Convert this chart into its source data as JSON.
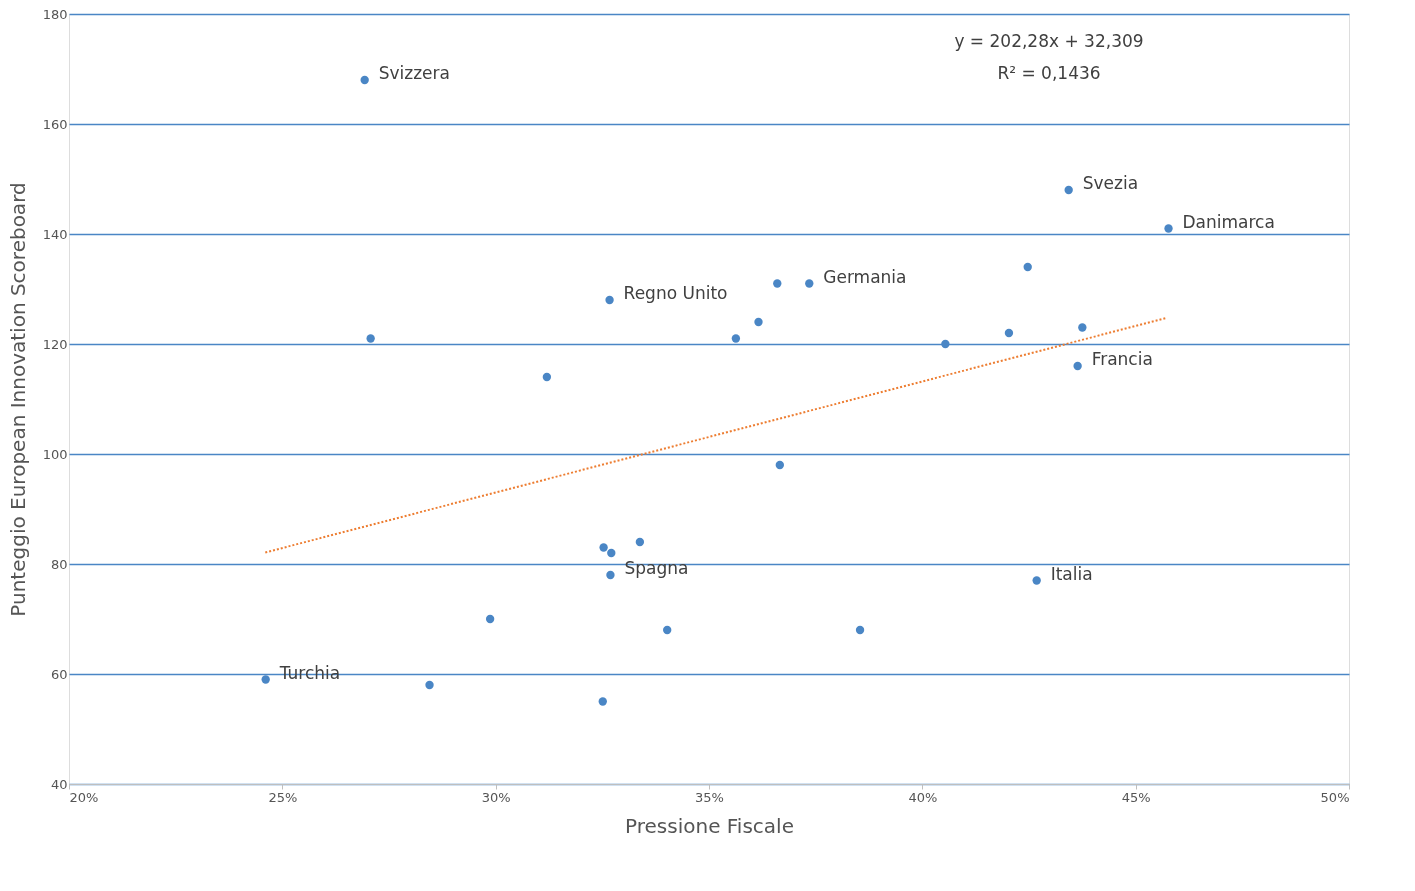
{
  "chart_data": {
    "type": "scatter",
    "xlabel": "Pressione Fiscale",
    "ylabel": "Punteggio European Innovation Scoreboard",
    "xlim": [
      0.2,
      0.5
    ],
    "xticks": [
      {
        "value": 0.2,
        "label": "20%"
      },
      {
        "value": 0.25,
        "label": "25%"
      },
      {
        "value": 0.3,
        "label": "30%"
      },
      {
        "value": 0.35,
        "label": "35%"
      },
      {
        "value": 0.4,
        "label": "40%"
      },
      {
        "value": 0.45,
        "label": "45%"
      },
      {
        "value": 0.5,
        "label": "50%"
      }
    ],
    "ylim": [
      40,
      180
    ],
    "yticks": [
      40,
      60,
      80,
      100,
      120,
      140,
      160,
      180
    ],
    "grid": "y",
    "legend": false,
    "series": [
      {
        "type": "scatter",
        "marker": "circle",
        "color": "#4a86c5",
        "x": [
          0.2693,
          0.2707,
          0.3267,
          0.312,
          0.3563,
          0.3616,
          0.366,
          0.3735,
          0.4247,
          0.4054,
          0.4203,
          0.4375,
          0.4364,
          0.4343,
          0.4577,
          0.3666,
          0.3253,
          0.3271,
          0.3338,
          0.3269,
          0.2987,
          0.3402,
          0.3854,
          0.4268,
          0.2461,
          0.2845,
          0.3251
        ],
        "values": [
          168,
          121,
          128,
          114,
          121,
          124,
          131,
          131,
          134,
          120,
          122,
          123,
          116,
          148,
          141,
          98,
          83,
          82,
          84,
          78,
          70,
          68,
          68,
          77,
          59,
          58,
          55
        ]
      },
      {
        "type": "line",
        "marker": "none",
        "color": "#ed7d31",
        "line_style": "dotted",
        "x": [
          0.246,
          0.457
        ],
        "values": [
          82.1,
          124.7
        ]
      }
    ],
    "annotations": [
      "y = 202,28x + 32,309",
      "R² = 0,1436",
      {
        "text": "Svizzera",
        "x": 0.2693,
        "y": 168
      },
      {
        "text": "Regno Unito",
        "x": 0.3267,
        "y": 128
      },
      {
        "text": "Germania",
        "x": 0.3735,
        "y": 131
      },
      {
        "text": "Svezia",
        "x": 0.4343,
        "y": 148
      },
      {
        "text": "Danimarca",
        "x": 0.4577,
        "y": 141
      },
      {
        "text": "Francia",
        "x": 0.4364,
        "y": 116
      },
      {
        "text": "Spagna",
        "x": 0.3269,
        "y": 78
      },
      {
        "text": "Italia",
        "x": 0.4268,
        "y": 77
      },
      {
        "text": "Turchia",
        "x": 0.2461,
        "y": 59
      }
    ]
  }
}
